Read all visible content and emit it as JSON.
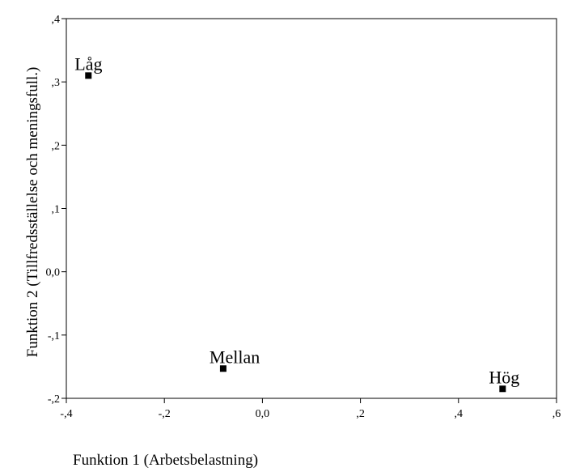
{
  "chart_data": {
    "type": "scatter",
    "xlabel": "Funktion 1 (Arbetsbelastning)",
    "ylabel": "Funktion 2 (Tillfredsställelse och meningsfull.)",
    "xlim": [
      -0.4,
      0.6
    ],
    "ylim": [
      -0.2,
      0.4
    ],
    "x_ticks": [
      -0.4,
      -0.2,
      0.0,
      0.2,
      0.4,
      0.6
    ],
    "x_tick_labels": [
      "-,4",
      "-,2",
      "0,0",
      ",2",
      ",4",
      ",6"
    ],
    "y_ticks": [
      -0.2,
      -0.1,
      0.0,
      0.1,
      0.2,
      0.3,
      0.4
    ],
    "y_tick_labels": [
      "-,2",
      "-,1",
      "0,0",
      ",1",
      ",2",
      ",3",
      ",4"
    ],
    "grid": false,
    "points": [
      {
        "label": "Låg",
        "x": -0.355,
        "y": 0.31
      },
      {
        "label": "Mellan",
        "x": -0.08,
        "y": -0.153
      },
      {
        "label": "Hög",
        "x": 0.49,
        "y": -0.185
      }
    ],
    "marker_color": "#000000"
  }
}
